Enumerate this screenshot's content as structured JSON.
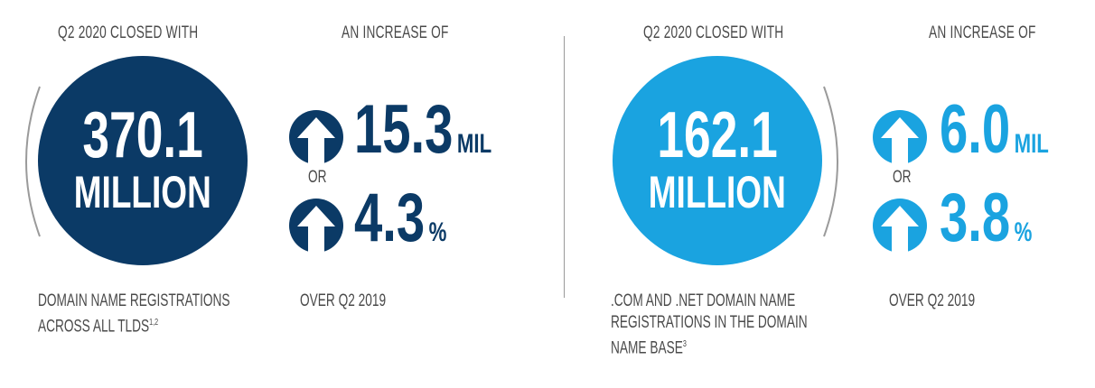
{
  "left": {
    "header_closed": "Q2 2020 CLOSED WITH",
    "header_increase": "AN INCREASE OF",
    "circle_number": "370.1",
    "circle_unit": "MILLION",
    "increase_value": "15.3",
    "increase_unit": "MIL",
    "or_label": "OR",
    "percent_value": "4.3",
    "percent_unit": "%",
    "desc_line1": "DOMAIN NAME REGISTRATIONS",
    "desc_line2": "ACROSS ALL TLDS",
    "desc_sup": "1,2",
    "over_label": "OVER Q2 2019",
    "color": "#0b3a66"
  },
  "right": {
    "header_closed": "Q2 2020 CLOSED WITH",
    "header_increase": "AN INCREASE OF",
    "circle_number": "162.1",
    "circle_unit": "MILLION",
    "increase_value": "6.0",
    "increase_unit": "MIL",
    "or_label": "OR",
    "percent_value": "3.8",
    "percent_unit": "%",
    "desc_line1": ".COM AND .NET DOMAIN NAME",
    "desc_line2": "REGISTRATIONS IN THE DOMAIN",
    "desc_line3": "NAME BASE",
    "desc_sup": "3",
    "over_label": "OVER Q2 2019",
    "color": "#1aa3e0"
  },
  "icons": [
    "up-arrow-circle-icon"
  ]
}
